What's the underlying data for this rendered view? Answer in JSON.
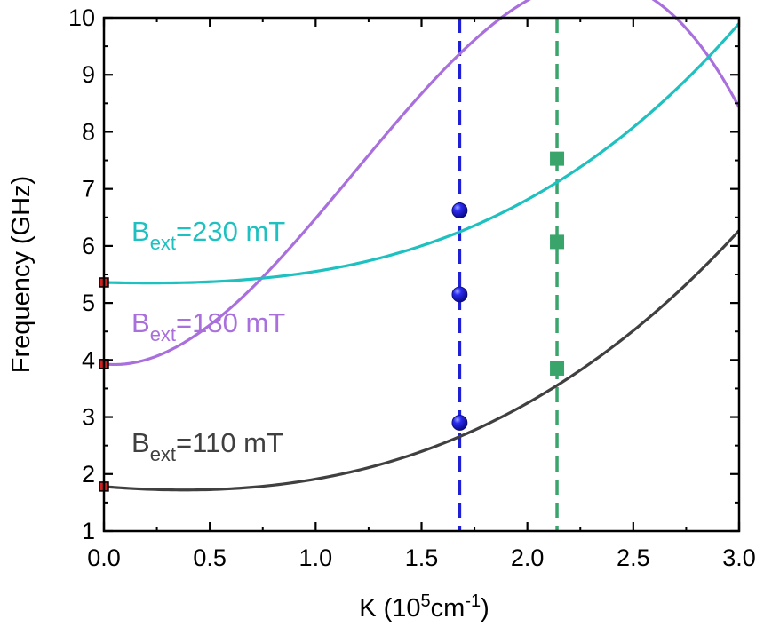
{
  "chart_data": {
    "type": "line",
    "title": "",
    "xlabel": {
      "prefix": "K (10",
      "sup1": "5",
      "mid": "cm",
      "sup2": "-1",
      "suffix": ")"
    },
    "ylabel": "Frequency (GHz)",
    "xlim": [
      0,
      3.0
    ],
    "ylim": [
      1,
      10
    ],
    "xticks": [
      "0.0",
      "0.5",
      "1.0",
      "1.5",
      "2.0",
      "2.5",
      "3.0"
    ],
    "yticks": [
      "1",
      "2",
      "3",
      "4",
      "5",
      "6",
      "7",
      "8",
      "9",
      "10"
    ],
    "grid": false,
    "series": [
      {
        "name": "Bext=110 mT",
        "label_main": "B",
        "label_sub": "ext",
        "label_rest": "=110 mT",
        "color": "#404040",
        "label_color": "#404040",
        "f0": 1.78,
        "kmin": 0.38,
        "fmin": 1.72,
        "k_end": 3.0,
        "f_end": 6.27
      },
      {
        "name": "Bext=180 mT",
        "label_main": "B",
        "label_sub": "ext",
        "label_rest": "=180 mT",
        "color": "#a970dd",
        "label_color": "#a970dd",
        "f0": 3.93,
        "kmin": 0.05,
        "fmin": 3.92,
        "k_end": 3.0,
        "f_end": 8.43
      },
      {
        "name": "Bext=230 mT",
        "label_main": "B",
        "label_sub": "ext",
        "label_rest": "=230 mT",
        "color": "#1fc0c0",
        "label_color": "#1fc0c0",
        "f0": 5.36,
        "kmin": 0.22,
        "fmin": 5.35,
        "k_end": 3.0,
        "f_end": 9.9
      }
    ],
    "vlines": [
      {
        "x": 1.68,
        "color": "#1f1fd6"
      },
      {
        "x": 2.14,
        "color": "#3aa56b"
      }
    ],
    "markers": {
      "k0_squares": {
        "x": 0.0,
        "y": [
          1.78,
          3.93,
          5.36
        ],
        "color": "#d02020"
      },
      "blue_spheres": {
        "x": 1.68,
        "y": [
          2.9,
          5.15,
          6.62
        ],
        "color": "#1a1ae0"
      },
      "green_squares": {
        "x": 2.14,
        "y": [
          3.85,
          6.07,
          7.53
        ],
        "color": "#3aa56b"
      }
    }
  }
}
